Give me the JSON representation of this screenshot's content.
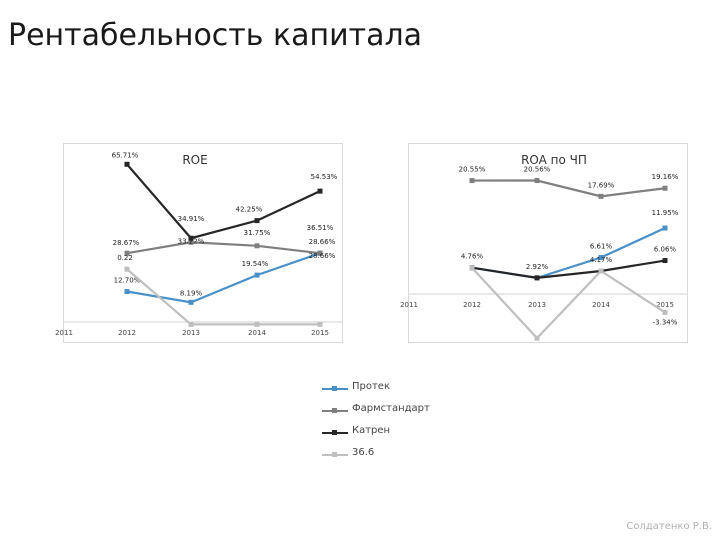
{
  "page": {
    "title": "Рентабельность капитала",
    "footer": "Солдатенко Р.В."
  },
  "chart_data": [
    {
      "type": "line",
      "title": "ROE",
      "categories": [
        "2011",
        "2012",
        "2013",
        "2014",
        "2015"
      ],
      "ylim": [
        0,
        70
      ],
      "series": [
        {
          "name": "Протек",
          "color": "#4a90c8",
          "values": [
            null,
            12.7,
            8.19,
            19.54,
            28.66
          ],
          "labels": [
            "",
            "12.70%",
            "8.19%",
            "19.54%",
            "28.66%"
          ]
        },
        {
          "name": "Фармстандарт",
          "color": "#7f7f7f",
          "values": [
            null,
            28.67,
            33.22,
            31.75,
            28.66
          ],
          "labels": [
            "",
            "28.67%",
            "33.22%",
            "31.75%",
            "28.66%"
          ]
        },
        {
          "name": "Катрен",
          "color": "#262626",
          "values": [
            null,
            65.71,
            34.91,
            42.25,
            54.53
          ],
          "labels": [
            "",
            "65.71%",
            "34.91%",
            "42.25%",
            "54.53%"
          ]
        },
        {
          "name": "36.6",
          "color": "#bfbfbf",
          "values": [
            null,
            22,
            -1,
            -1,
            -1
          ],
          "labels": [
            "",
            "0.22",
            "",
            "",
            ""
          ]
        }
      ],
      "extra_labels": [
        "36.51%"
      ]
    },
    {
      "type": "line",
      "title": "ROA по ЧП",
      "categories": [
        "2011",
        "2012",
        "2013",
        "2014",
        "2015"
      ],
      "ylim": [
        0,
        25
      ],
      "series": [
        {
          "name": "Протек",
          "color": "#4a90c8",
          "values": [
            null,
            4.76,
            2.92,
            6.61,
            11.95
          ],
          "labels": [
            "",
            "4.76%",
            "2.92%",
            "6.61%",
            "11.95%"
          ]
        },
        {
          "name": "Фармстандарт",
          "color": "#7f7f7f",
          "values": [
            null,
            20.55,
            20.56,
            17.69,
            19.16
          ],
          "labels": [
            "",
            "20.55%",
            "20.56%",
            "17.69%",
            "19.16%"
          ]
        },
        {
          "name": "Катрен",
          "color": "#262626",
          "values": [
            null,
            4.76,
            2.92,
            4.17,
            6.06
          ],
          "labels": [
            "",
            "",
            "",
            "4.17%",
            "6.06%"
          ]
        },
        {
          "name": "36.6",
          "color": "#bfbfbf",
          "values": [
            null,
            4.76,
            -8,
            4.17,
            -3.34
          ],
          "labels": [
            "",
            "",
            "",
            "",
            "-3.34%"
          ]
        }
      ]
    }
  ],
  "legend": [
    {
      "label": "Протек",
      "color": "#4a90c8"
    },
    {
      "label": "Фармстандарт",
      "color": "#7f7f7f"
    },
    {
      "label": "Катрен",
      "color": "#262626"
    },
    {
      "label": "36.6",
      "color": "#bfbfbf"
    }
  ]
}
